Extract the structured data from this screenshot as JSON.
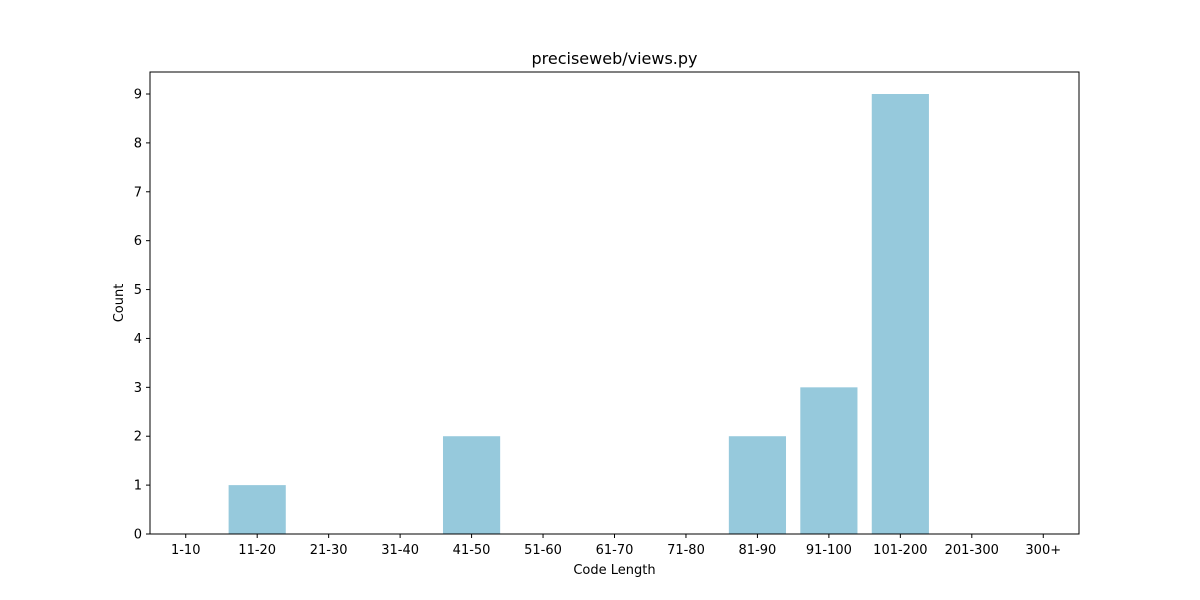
{
  "chart_data": {
    "type": "bar",
    "title": "preciseweb/views.py",
    "xlabel": "Code Length",
    "ylabel": "Count",
    "categories": [
      "1-10",
      "11-20",
      "21-30",
      "31-40",
      "41-50",
      "51-60",
      "61-70",
      "71-80",
      "81-90",
      "91-100",
      "101-200",
      "201-300",
      "300+"
    ],
    "values": [
      0,
      1,
      0,
      0,
      2,
      0,
      0,
      0,
      2,
      3,
      9,
      0,
      0
    ],
    "yticks": [
      0,
      1,
      2,
      3,
      4,
      5,
      6,
      7,
      8,
      9
    ],
    "ylim": [
      0,
      9.45
    ],
    "bar_color": "#96c9dc",
    "grid": false,
    "legend": "none"
  }
}
